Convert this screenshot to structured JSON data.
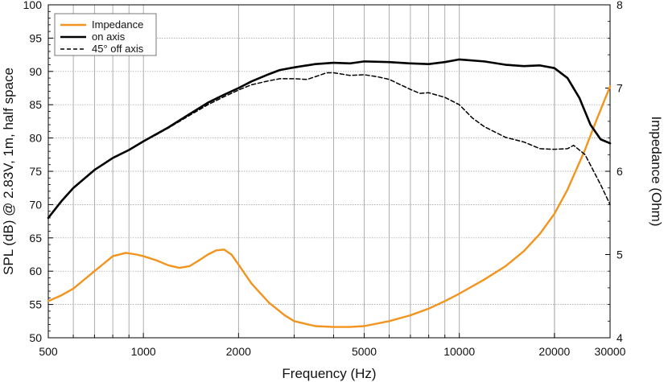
{
  "chart_data": {
    "type": "line",
    "xlabel": "Frequency (Hz)",
    "ylabel_left": "SPL (dB) @ 2.83V, 1m, half space",
    "ylabel_right": "Impedance (Ohm)",
    "x_scale": "log",
    "xlim": [
      500,
      30000
    ],
    "ylim_left": [
      50,
      100
    ],
    "ylim_right": [
      4,
      8
    ],
    "x_ticks": [
      500,
      1000,
      2000,
      5000,
      10000,
      20000,
      30000
    ],
    "x_tick_labels": [
      "500",
      "1000",
      "2000",
      "5000",
      "10000",
      "20000",
      "30000"
    ],
    "y_left_ticks": [
      50,
      55,
      60,
      65,
      70,
      75,
      80,
      85,
      90,
      95,
      100
    ],
    "y_right_ticks": [
      4,
      5,
      6,
      7,
      8
    ],
    "grid": true,
    "legend_position": "top-left",
    "colors": {
      "impedance": "#f2941e",
      "on_axis": "#000000",
      "off_axis": "#000000"
    },
    "series": [
      {
        "name": "Impedance",
        "axis": "right",
        "style": "solid",
        "x": [
          500,
          550,
          600,
          700,
          800,
          880,
          950,
          1000,
          1100,
          1200,
          1300,
          1400,
          1500,
          1600,
          1700,
          1800,
          1900,
          2000,
          2200,
          2500,
          2800,
          3000,
          3500,
          4000,
          4500,
          5000,
          6000,
          7000,
          8000,
          9000,
          10000,
          12000,
          14000,
          16000,
          18000,
          20000,
          22000,
          25000,
          27000,
          30000
        ],
        "y": [
          4.44,
          4.51,
          4.59,
          4.8,
          4.98,
          5.02,
          5.0,
          4.98,
          4.93,
          4.87,
          4.84,
          4.86,
          4.93,
          5.0,
          5.05,
          5.06,
          5.0,
          4.88,
          4.65,
          4.42,
          4.27,
          4.2,
          4.14,
          4.13,
          4.13,
          4.14,
          4.2,
          4.27,
          4.35,
          4.44,
          4.53,
          4.7,
          4.86,
          5.04,
          5.25,
          5.49,
          5.78,
          6.26,
          6.59,
          7.02
        ]
      },
      {
        "name": "on axis",
        "axis": "left",
        "style": "solid",
        "x": [
          500,
          550,
          600,
          700,
          800,
          900,
          1000,
          1200,
          1400,
          1600,
          1800,
          2000,
          2200,
          2500,
          2700,
          3000,
          3500,
          4000,
          4500,
          5000,
          6000,
          7000,
          8000,
          9000,
          10000,
          12000,
          14000,
          16000,
          18000,
          20000,
          22000,
          24000,
          26000,
          28000,
          30000
        ],
        "y": [
          68.0,
          70.5,
          72.5,
          75.2,
          77.0,
          78.2,
          79.5,
          81.6,
          83.6,
          85.3,
          86.5,
          87.5,
          88.5,
          89.6,
          90.2,
          90.6,
          91.1,
          91.3,
          91.2,
          91.5,
          91.4,
          91.2,
          91.1,
          91.4,
          91.8,
          91.5,
          91.0,
          90.8,
          90.9,
          90.5,
          89.0,
          86.0,
          82.0,
          79.8,
          79.2
        ]
      },
      {
        "name": "45° off axis",
        "axis": "left",
        "style": "dashed",
        "x": [
          1000,
          1100,
          1200,
          1400,
          1600,
          1800,
          2000,
          2200,
          2500,
          2700,
          3000,
          3300,
          3600,
          3800,
          4000,
          4500,
          5000,
          5500,
          6000,
          7000,
          7500,
          8000,
          9000,
          10000,
          11000,
          12000,
          14000,
          16000,
          18000,
          20000,
          22000,
          23000,
          25000,
          28000,
          30000
        ],
        "y": [
          79.5,
          80.5,
          81.5,
          83.4,
          85.0,
          86.2,
          87.2,
          88.0,
          88.6,
          88.9,
          88.9,
          88.8,
          89.4,
          89.8,
          89.8,
          89.4,
          89.5,
          89.2,
          88.8,
          87.3,
          86.7,
          86.8,
          86.1,
          85.0,
          83.0,
          81.7,
          80.1,
          79.4,
          78.4,
          78.3,
          78.4,
          78.9,
          77.5,
          73.0,
          70.0
        ]
      }
    ]
  }
}
